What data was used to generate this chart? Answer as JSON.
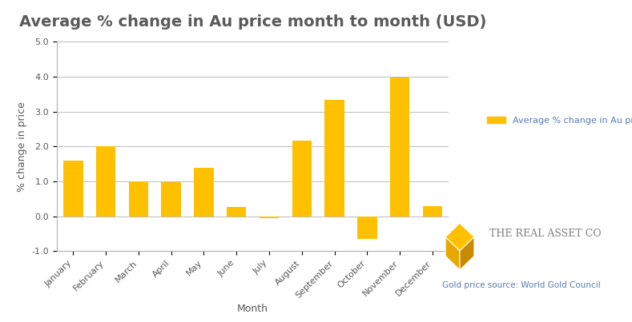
{
  "title": "Average % change in Au price month to month (USD)",
  "xlabel": "Month",
  "ylabel": "% change in price",
  "categories": [
    "January",
    "February",
    "March",
    "April",
    "May",
    "June",
    "July",
    "August",
    "September",
    "October",
    "November",
    "December"
  ],
  "values": [
    1.6,
    2.0,
    1.0,
    0.97,
    1.4,
    0.27,
    -0.05,
    2.17,
    3.33,
    -0.65,
    3.98,
    0.28
  ],
  "bar_color": "#FFC000",
  "ylim": [
    -1.0,
    5.0
  ],
  "yticks": [
    -1.0,
    0.0,
    1.0,
    2.0,
    3.0,
    4.0,
    5.0
  ],
  "legend_label": "Average % change in Au price (USD)",
  "background_color": "#ffffff",
  "title_fontsize": 14,
  "axis_label_fontsize": 9,
  "tick_fontsize": 8,
  "legend_fontsize": 8,
  "source_text": "Gold price source: World Gold Council",
  "brand_text": "The Real Asset Co",
  "legend_text_color": "#5a7ab5",
  "source_text_color": "#5a7ab5",
  "brand_text_color": "#808080",
  "title_color": "#5a5a5a",
  "axis_text_color": "#5a5a5a",
  "grid_color": "#b0b0b0",
  "spine_color": "#b0b0b0"
}
